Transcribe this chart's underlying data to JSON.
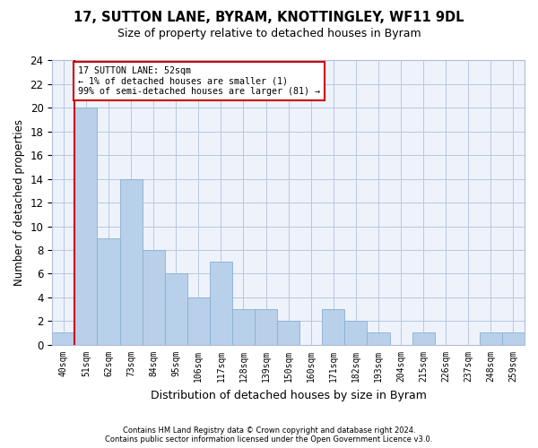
{
  "title1": "17, SUTTON LANE, BYRAM, KNOTTINGLEY, WF11 9DL",
  "title2": "Size of property relative to detached houses in Byram",
  "xlabel": "Distribution of detached houses by size in Byram",
  "ylabel": "Number of detached properties",
  "categories": [
    "40sqm",
    "51sqm",
    "62sqm",
    "73sqm",
    "84sqm",
    "95sqm",
    "106sqm",
    "117sqm",
    "128sqm",
    "139sqm",
    "150sqm",
    "160sqm",
    "171sqm",
    "182sqm",
    "193sqm",
    "204sqm",
    "215sqm",
    "226sqm",
    "237sqm",
    "248sqm",
    "259sqm"
  ],
  "values": [
    1,
    20,
    9,
    14,
    8,
    6,
    4,
    7,
    3,
    3,
    2,
    0,
    3,
    2,
    1,
    0,
    1,
    0,
    0,
    1,
    1
  ],
  "bar_color": "#b8d0ea",
  "bar_edge_color": "#8ab0d0",
  "highlight_bar_index": 1,
  "highlight_line_color": "#cc0000",
  "annotation_box_color": "#cc0000",
  "annotation_lines": [
    "17 SUTTON LANE: 52sqm",
    "← 1% of detached houses are smaller (1)",
    "99% of semi-detached houses are larger (81) →"
  ],
  "ylim": [
    0,
    24
  ],
  "yticks": [
    0,
    2,
    4,
    6,
    8,
    10,
    12,
    14,
    16,
    18,
    20,
    22,
    24
  ],
  "footer1": "Contains HM Land Registry data © Crown copyright and database right 2024.",
  "footer2": "Contains public sector information licensed under the Open Government Licence v3.0.",
  "background_color": "#ffffff",
  "plot_bg_color": "#eef2fb"
}
